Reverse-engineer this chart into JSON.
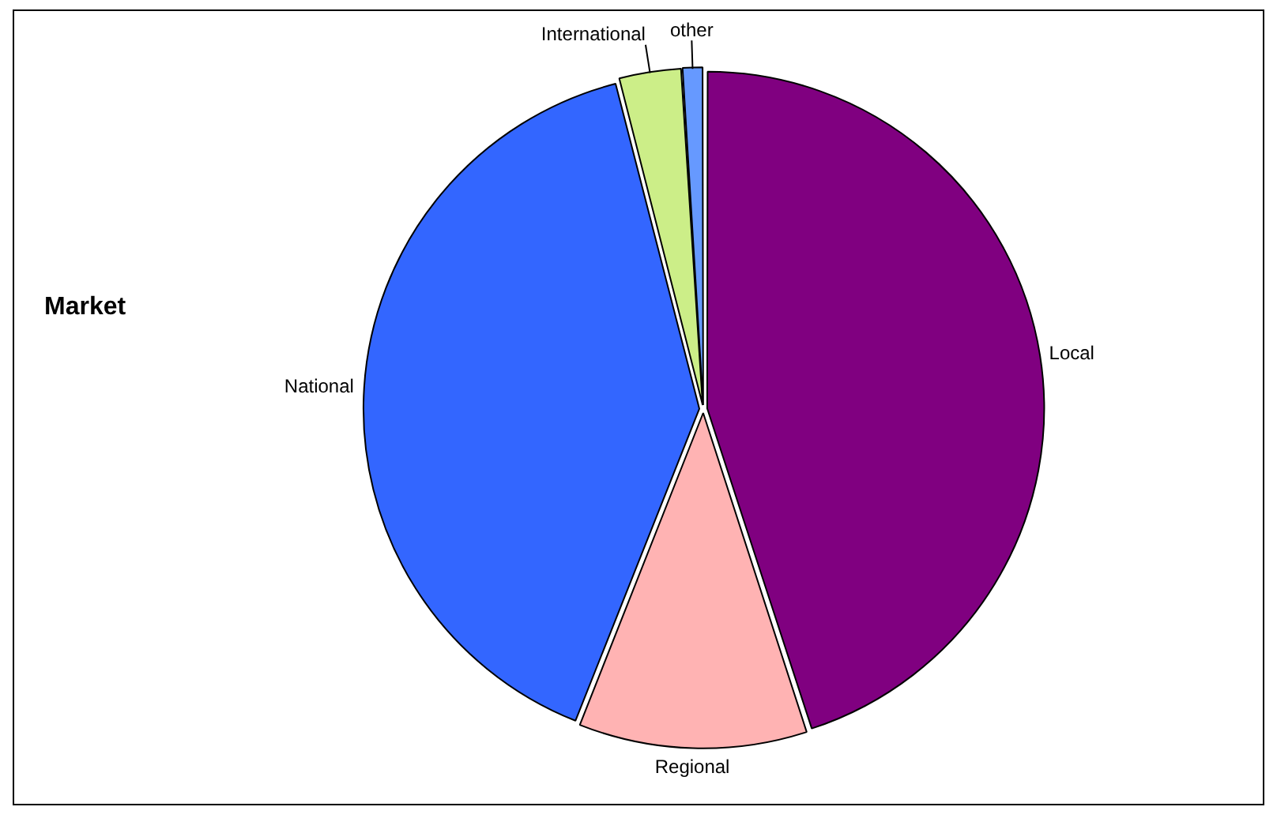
{
  "chart_data": {
    "type": "pie",
    "title": "Market",
    "categories": [
      "Local",
      "Regional",
      "National",
      "International",
      "other"
    ],
    "values": [
      45,
      11,
      40,
      3,
      1
    ],
    "colors": [
      "#800080",
      "#ffb3b3",
      "#3366ff",
      "#ccee88",
      "#6699ff"
    ],
    "legend": false
  }
}
